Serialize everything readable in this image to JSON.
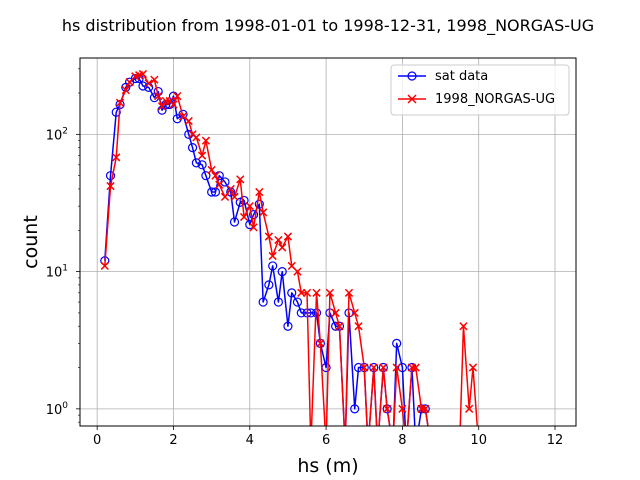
{
  "chart_data": {
    "type": "line",
    "title": "hs distribution from 1998-01-01 to 1998-12-31, 1998_NORGAS-UG",
    "xlabel": "hs (m)",
    "ylabel": "count",
    "xlim": [
      -0.45,
      12.55
    ],
    "ylim": [
      0.75,
      360
    ],
    "yscale": "log",
    "grid": true,
    "legend_position": "top-right",
    "x_ticks": [
      0,
      2,
      4,
      6,
      8,
      10,
      12
    ],
    "y_ticks": [
      1,
      10,
      100
    ],
    "y_tick_labels": [
      {
        "base": "10",
        "exp": "0"
      },
      {
        "base": "10",
        "exp": "1"
      },
      {
        "base": "10",
        "exp": "2"
      }
    ],
    "series": [
      {
        "name": "sat data",
        "color": "#0000ff",
        "marker": "circle",
        "x": [
          0.2,
          0.35,
          0.5,
          0.6,
          0.75,
          0.85,
          1.0,
          1.1,
          1.2,
          1.35,
          1.5,
          1.6,
          1.7,
          1.8,
          1.9,
          2.0,
          2.1,
          2.25,
          2.4,
          2.5,
          2.6,
          2.75,
          2.85,
          3.0,
          3.1,
          3.2,
          3.35,
          3.5,
          3.6,
          3.75,
          3.85,
          4.0,
          4.1,
          4.25,
          4.35,
          4.5,
          4.6,
          4.75,
          4.85,
          5.0,
          5.1,
          5.25,
          5.35,
          5.5,
          5.6,
          5.75,
          5.85,
          6.0,
          6.1,
          6.25,
          6.35,
          6.5,
          6.6,
          6.75,
          6.85,
          7.0,
          7.1,
          7.25,
          7.35,
          7.5,
          7.6,
          7.75,
          7.85,
          8.0,
          8.1,
          8.25,
          8.35,
          8.5,
          8.6,
          8.75,
          8.85,
          9.0,
          9.1,
          9.25,
          9.35,
          9.5,
          9.6,
          9.75,
          9.85,
          10.0,
          10.1,
          10.25,
          10.35
        ],
        "values": [
          12,
          50,
          145,
          165,
          220,
          240,
          255,
          255,
          225,
          220,
          185,
          205,
          150,
          165,
          165,
          190,
          130,
          140,
          100,
          80,
          62,
          60,
          50,
          38,
          38,
          50,
          45,
          38,
          23,
          32,
          33,
          22,
          26,
          31,
          6,
          8,
          11,
          6,
          10,
          4,
          7,
          6,
          5,
          5,
          5,
          5,
          3,
          2,
          5,
          4,
          4,
          0,
          5,
          1,
          2,
          2,
          0,
          2,
          0,
          2,
          1,
          0,
          3,
          2,
          0,
          2,
          0,
          1,
          1,
          0,
          0,
          0,
          0,
          0,
          0,
          0,
          0,
          0,
          0,
          0,
          0,
          0,
          0
        ]
      },
      {
        "name": "1998_NORGAS-UG",
        "color": "#ff0000",
        "marker": "x",
        "x": [
          0.2,
          0.35,
          0.5,
          0.6,
          0.75,
          0.85,
          1.0,
          1.1,
          1.2,
          1.35,
          1.5,
          1.6,
          1.7,
          1.8,
          1.9,
          2.0,
          2.1,
          2.25,
          2.4,
          2.5,
          2.6,
          2.75,
          2.85,
          3.0,
          3.1,
          3.2,
          3.35,
          3.5,
          3.6,
          3.75,
          3.85,
          4.0,
          4.1,
          4.25,
          4.35,
          4.5,
          4.6,
          4.75,
          4.85,
          5.0,
          5.1,
          5.25,
          5.35,
          5.5,
          5.6,
          5.75,
          5.85,
          6.0,
          6.1,
          6.25,
          6.35,
          6.5,
          6.6,
          6.75,
          6.85,
          7.0,
          7.1,
          7.25,
          7.35,
          7.5,
          7.6,
          7.75,
          7.85,
          8.0,
          8.1,
          8.25,
          8.35,
          8.5,
          8.6,
          8.75,
          8.85,
          9.0,
          9.1,
          9.25,
          9.35,
          9.5,
          9.6,
          9.75,
          9.85,
          10.0,
          10.1,
          10.25,
          10.35
        ],
        "values": [
          11,
          42,
          68,
          170,
          210,
          240,
          265,
          270,
          275,
          235,
          250,
          190,
          160,
          175,
          175,
          165,
          190,
          135,
          125,
          100,
          95,
          70,
          90,
          55,
          50,
          43,
          35,
          40,
          35,
          47,
          25,
          30,
          21,
          38,
          27,
          18,
          13,
          17,
          15,
          18,
          11,
          10,
          7,
          7,
          0,
          7,
          3,
          0,
          7,
          5,
          4,
          0,
          7,
          5,
          4,
          2,
          0,
          2,
          0,
          2,
          1,
          0,
          2,
          1,
          0,
          2,
          2,
          1,
          1,
          0,
          0,
          0,
          0,
          0,
          0,
          0,
          4,
          1,
          2,
          0,
          0,
          0,
          0
        ]
      }
    ]
  }
}
